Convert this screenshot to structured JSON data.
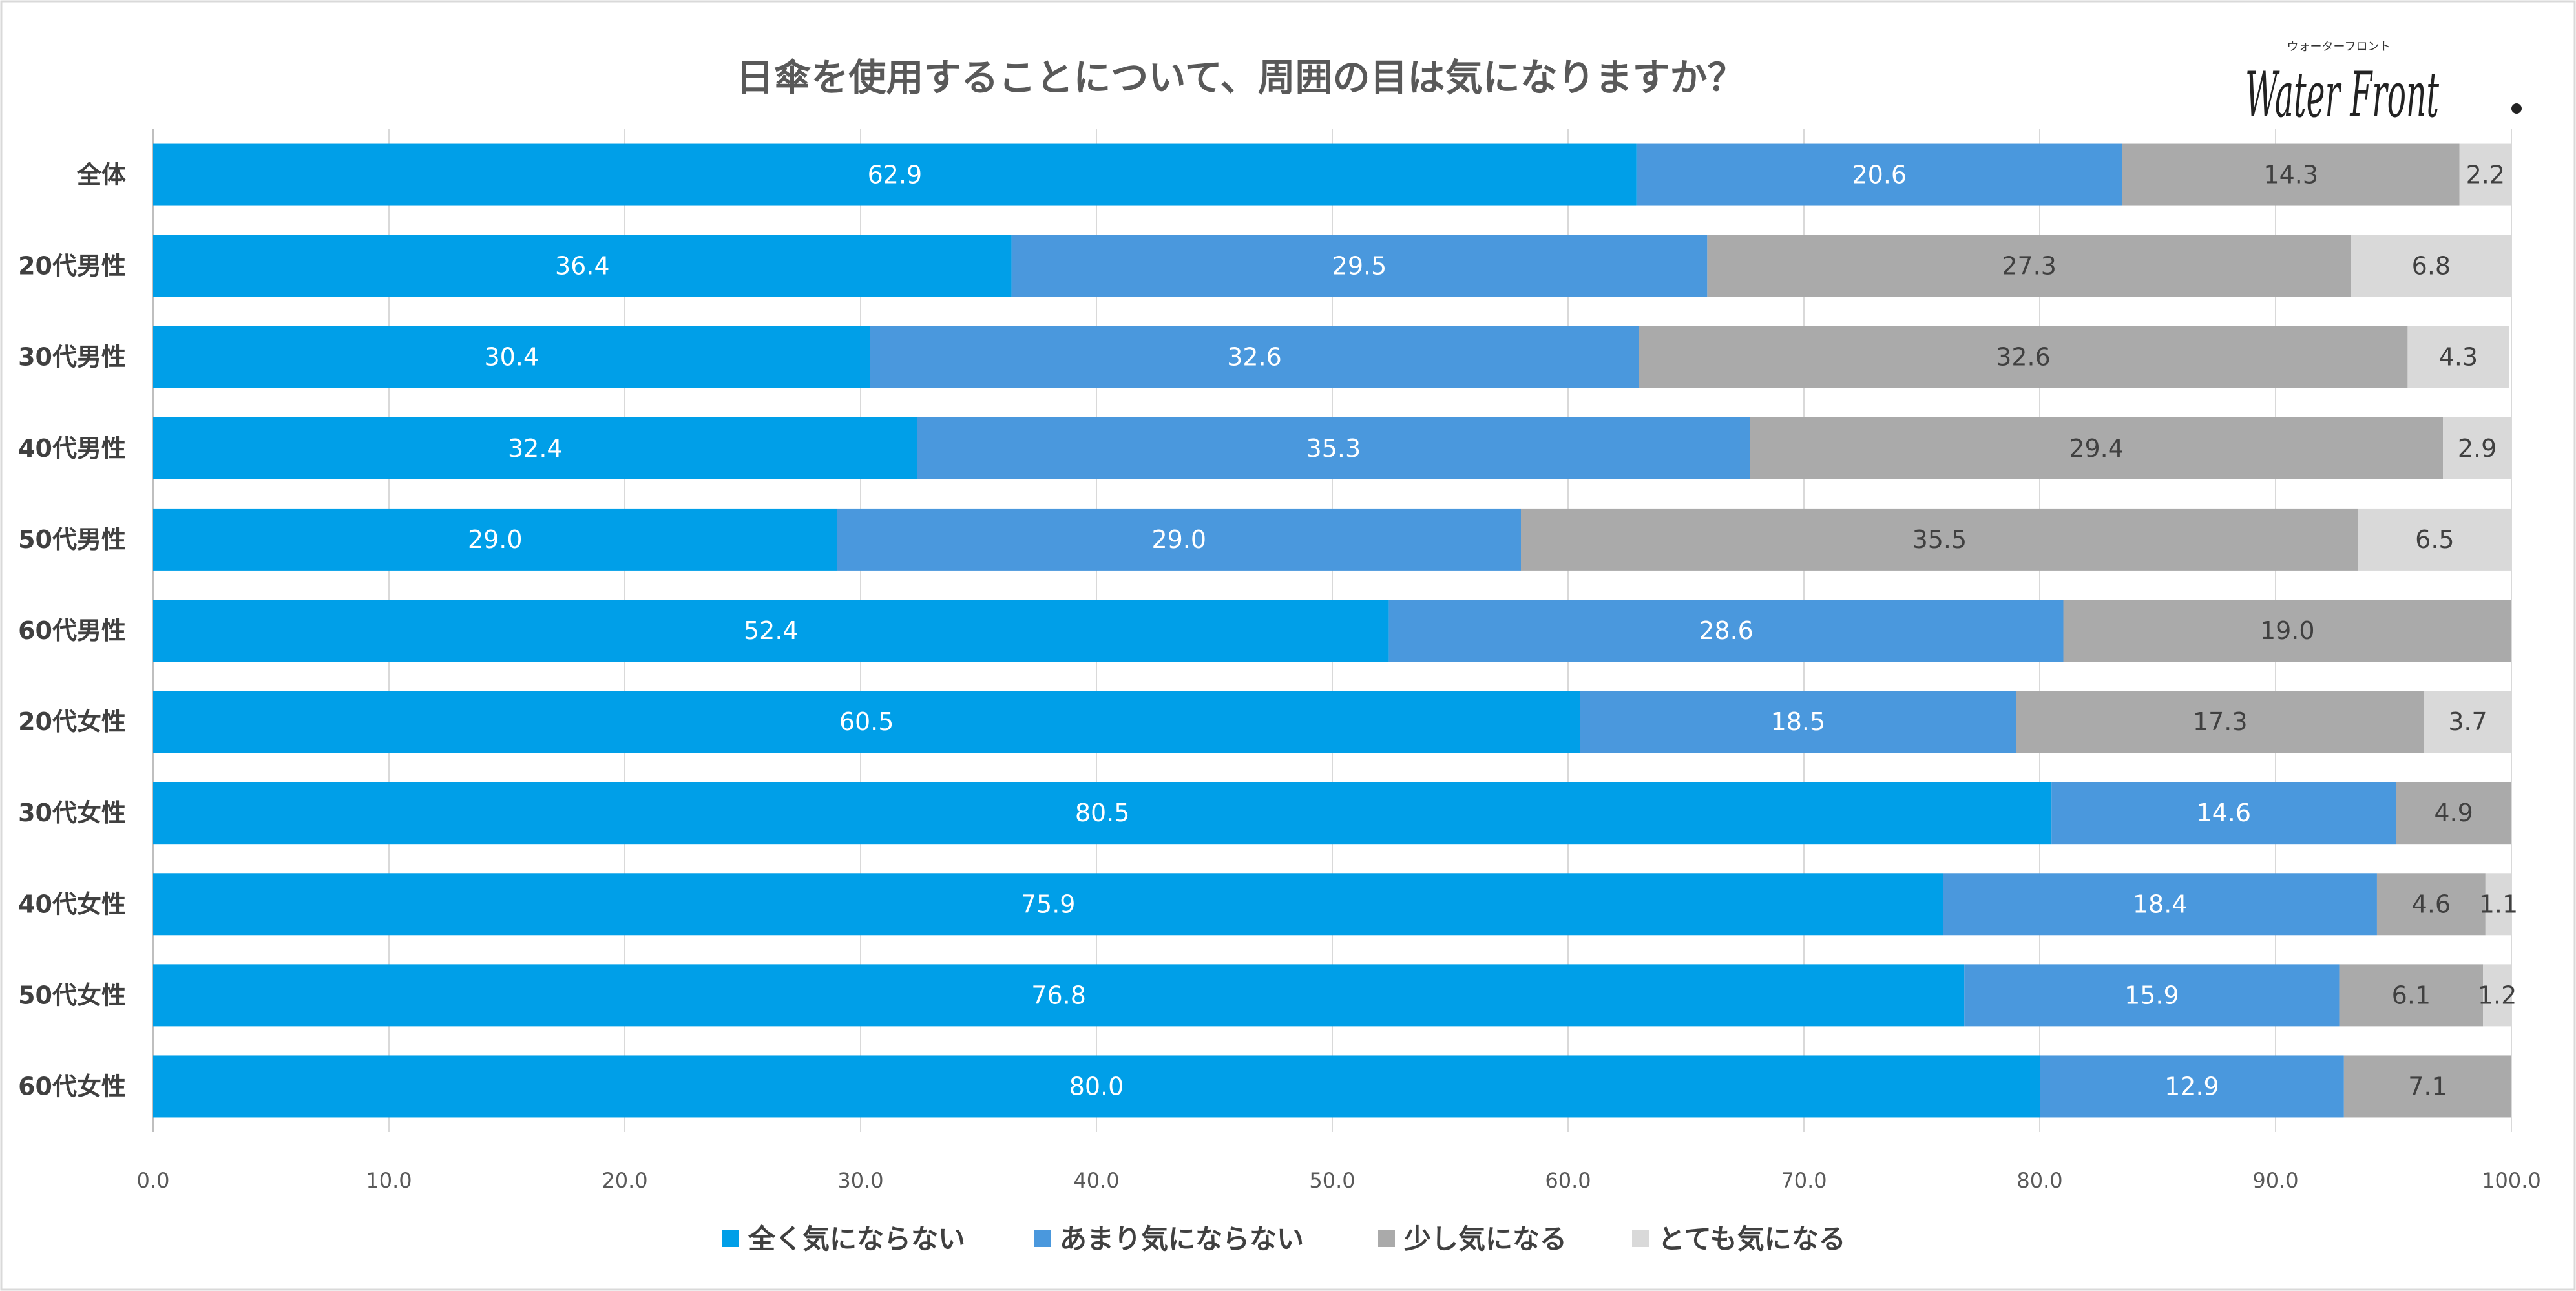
{
  "chart_data": {
    "type": "bar",
    "orientation": "horizontal",
    "stacked": true,
    "title": "日傘を使用することについて、周囲の目は気になりますか？",
    "categories": [
      "全体",
      "20代男性",
      "30代男性",
      "40代男性",
      "50代男性",
      "60代男性",
      "20代女性",
      "30代女性",
      "40代女性",
      "50代女性",
      "60代女性"
    ],
    "series": [
      {
        "name": "全く気にならない",
        "color": "#009fe8",
        "label_color": "#ffffff",
        "values": [
          62.9,
          36.4,
          30.4,
          32.4,
          29.0,
          52.4,
          60.5,
          80.5,
          75.9,
          76.8,
          80.0
        ]
      },
      {
        "name": "あまり気にならない",
        "color": "#4a98dd",
        "label_color": "#ffffff",
        "values": [
          20.6,
          29.5,
          32.6,
          35.3,
          29.0,
          28.6,
          18.5,
          14.6,
          18.4,
          15.9,
          12.9
        ]
      },
      {
        "name": "少し気になる",
        "color": "#aaaaaa",
        "label_color": "#404040",
        "values": [
          14.3,
          27.3,
          32.6,
          29.4,
          35.5,
          19.0,
          17.3,
          4.9,
          4.6,
          6.1,
          7.1
        ]
      },
      {
        "name": "とても気になる",
        "color": "#d9d9d9",
        "label_color": "#404040",
        "values": [
          2.2,
          6.8,
          4.3,
          2.9,
          6.5,
          null,
          3.7,
          null,
          1.1,
          1.2,
          null
        ]
      }
    ],
    "xlim": [
      0,
      100
    ],
    "xticks": [
      "0.0",
      "10.0",
      "20.0",
      "30.0",
      "40.0",
      "50.0",
      "60.0",
      "70.0",
      "80.0",
      "90.0",
      "100.0"
    ],
    "grid": true,
    "legend_position": "bottom"
  },
  "logo": {
    "top_text": "ウォーターフロント",
    "main_text": "Water Front"
  }
}
